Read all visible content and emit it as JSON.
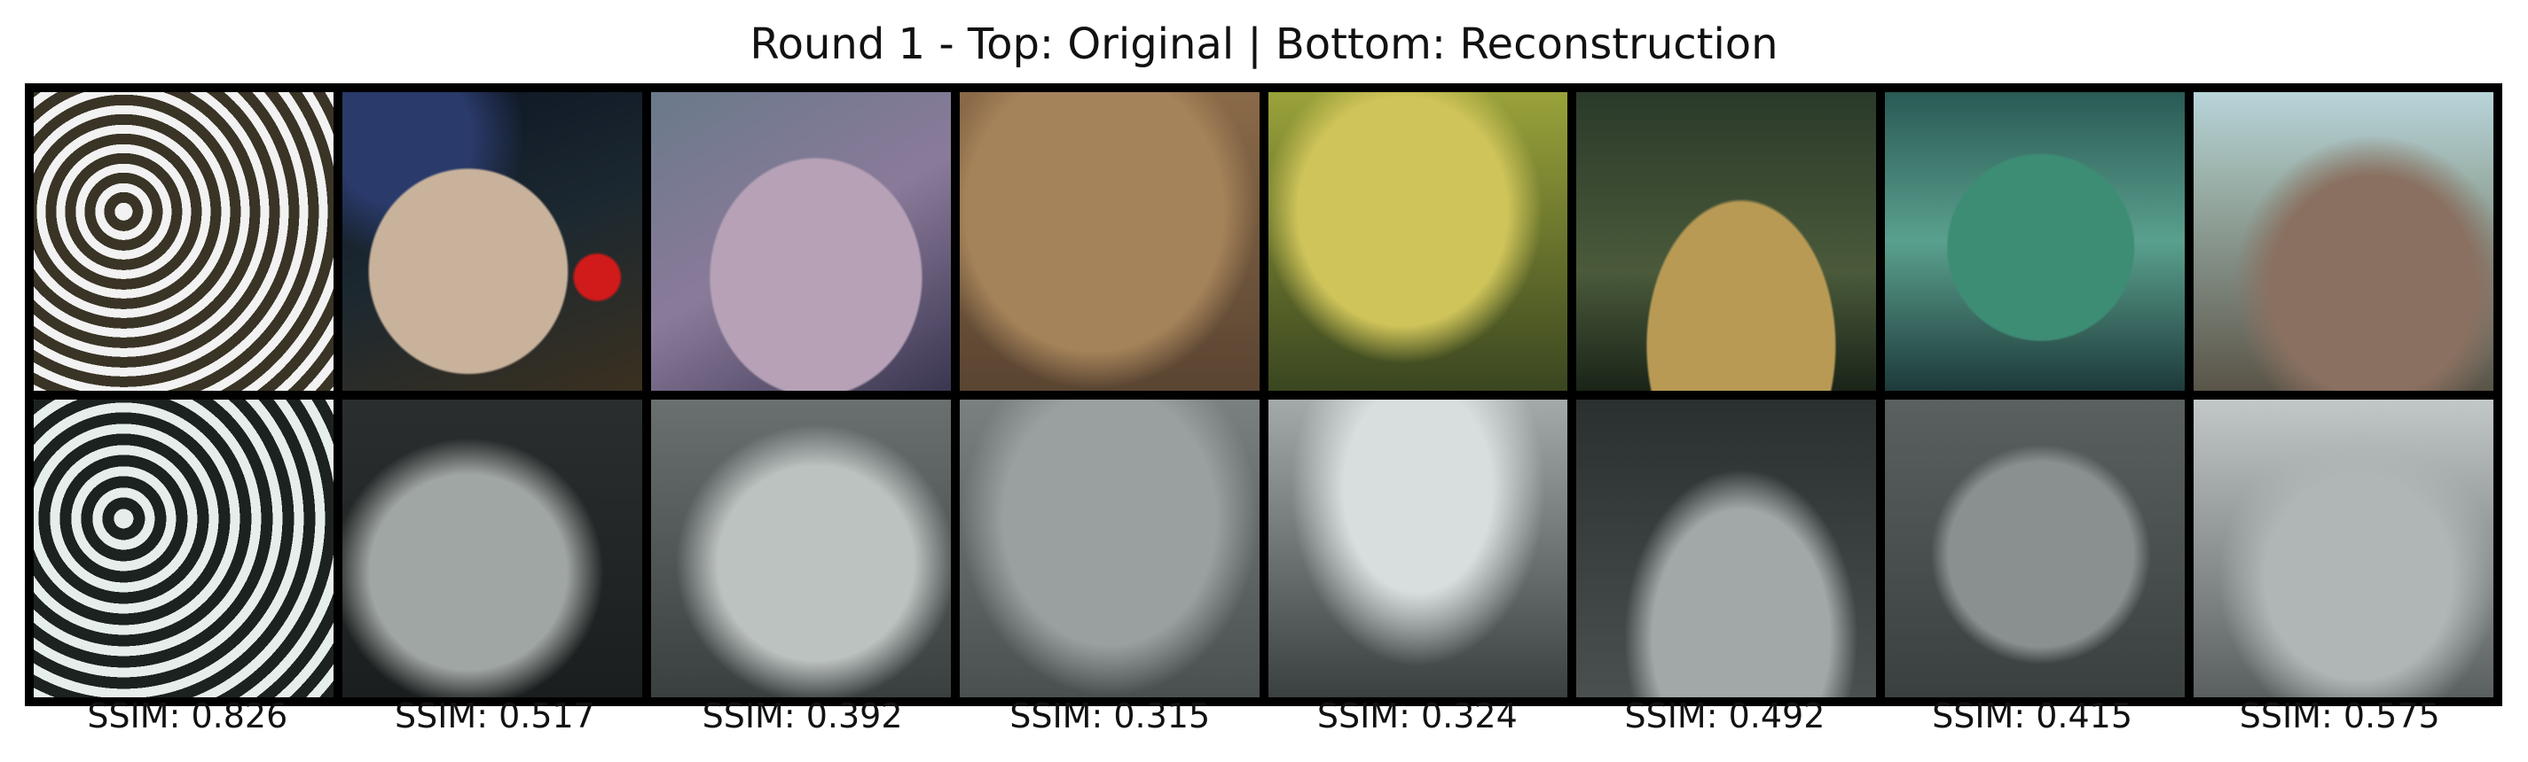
{
  "title": "Round 1 - Top: Original | Bottom: Reconstruction",
  "images": [
    {
      "ssim": "SSIM: 0.826",
      "ssim_value": 0.826
    },
    {
      "ssim": "SSIM: 0.517",
      "ssim_value": 0.517
    },
    {
      "ssim": "SSIM: 0.392",
      "ssim_value": 0.392
    },
    {
      "ssim": "SSIM: 0.315",
      "ssim_value": 0.315
    },
    {
      "ssim": "SSIM: 0.324",
      "ssim_value": 0.324
    },
    {
      "ssim": "SSIM: 0.492",
      "ssim_value": 0.492
    },
    {
      "ssim": "SSIM: 0.415",
      "ssim_value": 0.415
    },
    {
      "ssim": "SSIM: 0.575",
      "ssim_value": 0.575
    }
  ],
  "colors": {
    "background": "#ffffff",
    "grid_border": "#000000"
  }
}
